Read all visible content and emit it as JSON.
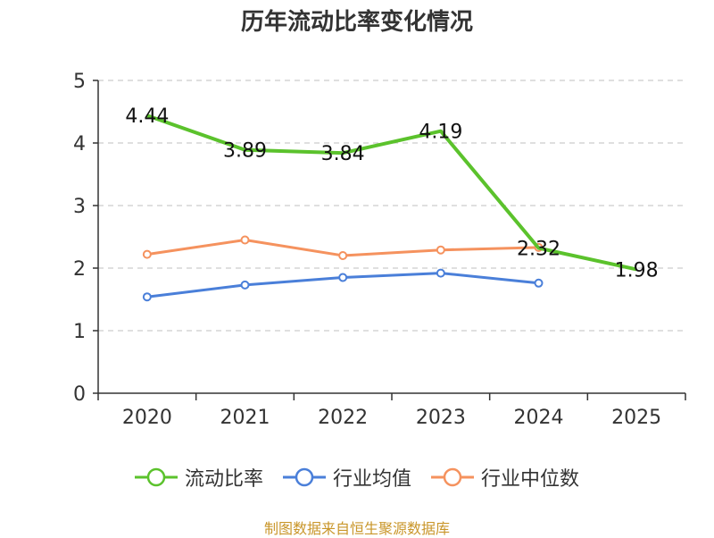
{
  "chart_data": {
    "type": "line",
    "title": "历年流动比率变化情况",
    "categories": [
      "2020",
      "2021",
      "2022",
      "2023",
      "2024",
      "2025"
    ],
    "ylim": [
      0,
      5
    ],
    "yticks": [
      "0",
      "1",
      "2",
      "3",
      "4",
      "5"
    ],
    "grid": true,
    "legend_position": "bottom",
    "series": [
      {
        "name": "流动比率",
        "color": "#5bc22c",
        "values": [
          4.44,
          3.89,
          3.84,
          4.19,
          2.32,
          1.98
        ],
        "labels": [
          "4.44",
          "3.89",
          "3.84",
          "4.19",
          "2.32",
          "1.98"
        ]
      },
      {
        "name": "行业均值",
        "color": "#4a7fd9",
        "values": [
          1.54,
          1.73,
          1.85,
          1.92,
          1.76,
          null
        ]
      },
      {
        "name": "行业中位数",
        "color": "#f5925e",
        "values": [
          2.22,
          2.45,
          2.2,
          2.29,
          2.33,
          null
        ]
      }
    ]
  },
  "source": "制图数据来自恒生聚源数据库"
}
